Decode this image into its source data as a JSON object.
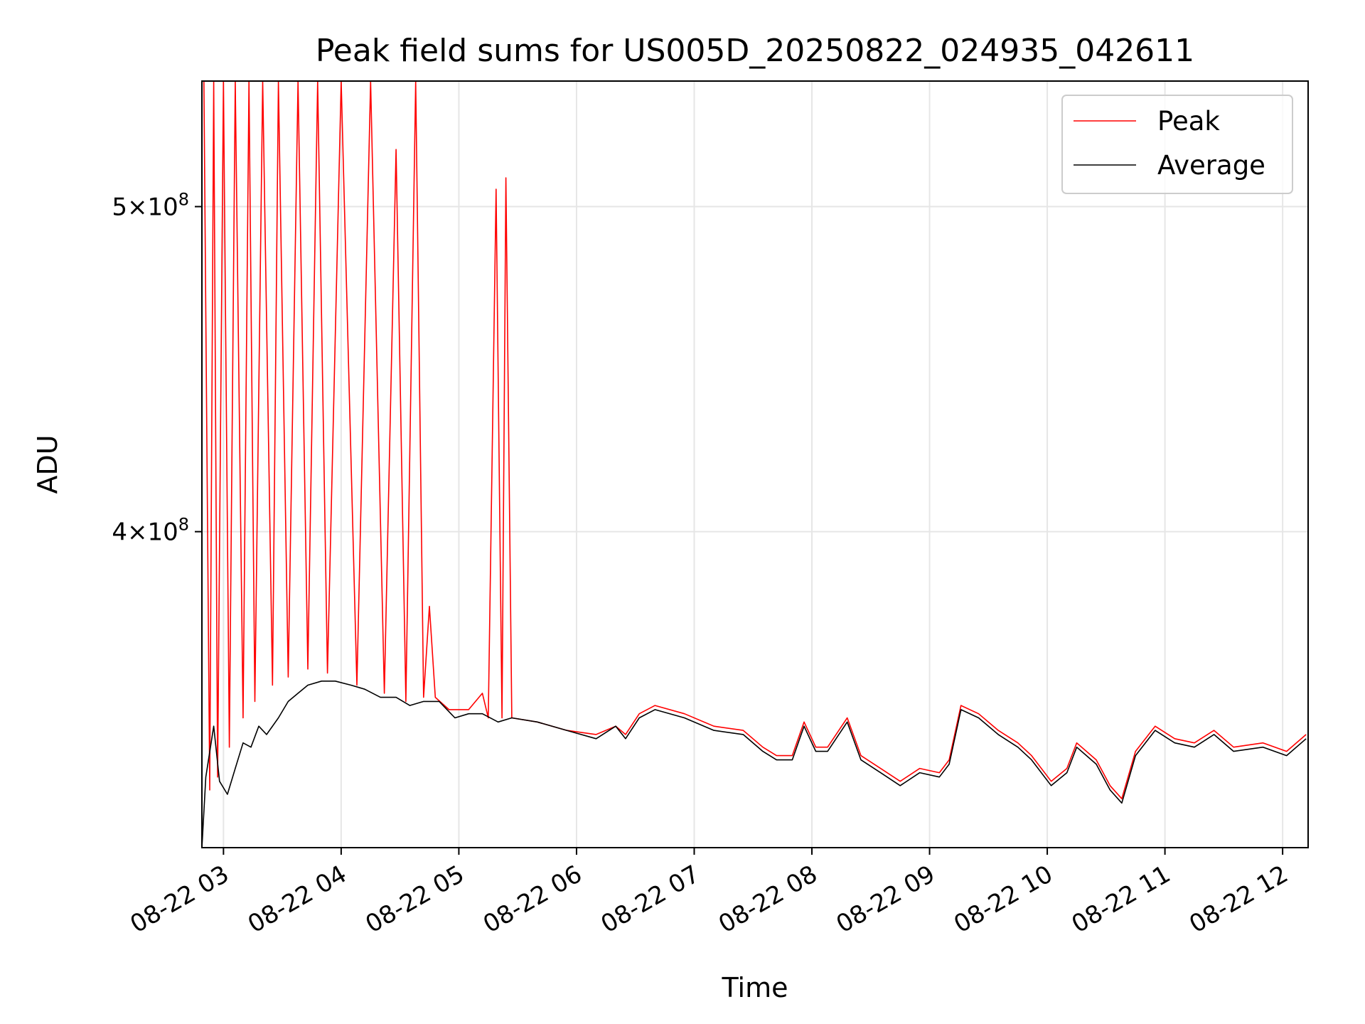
{
  "chart_data": {
    "type": "line",
    "title": "Peak field sums for US005D_20250822_024935_042611",
    "xlabel": "Time",
    "ylabel": "ADU",
    "y_scale": "log",
    "xlim": [
      "2025-08-22 02:49",
      "2025-08-22 12:13"
    ],
    "ylim": [
      322000000,
      545000000
    ],
    "x_ticks": [
      "08-22 03",
      "08-22 04",
      "08-22 05",
      "08-22 06",
      "08-22 07",
      "08-22 08",
      "08-22 09",
      "08-22 10",
      "08-22 11",
      "08-22 12"
    ],
    "y_ticks": [
      {
        "value": 400000000,
        "mantissa": "4",
        "base": "10",
        "exponent": "8"
      },
      {
        "value": 500000000,
        "mantissa": "5",
        "base": "10",
        "exponent": "8"
      }
    ],
    "grid": true,
    "legend_position": "top-right",
    "series": [
      {
        "name": "Peak",
        "color": "#ff0000",
        "points": [
          [
            "2025-08-22 02:50",
            545000000
          ],
          [
            "2025-08-22 02:53",
            335000000
          ],
          [
            "2025-08-22 02:55",
            545000000
          ],
          [
            "2025-08-22 02:57",
            338000000
          ],
          [
            "2025-08-22 03:00",
            545000000
          ],
          [
            "2025-08-22 03:03",
            345000000
          ],
          [
            "2025-08-22 03:06",
            545000000
          ],
          [
            "2025-08-22 03:10",
            352000000
          ],
          [
            "2025-08-22 03:13",
            545000000
          ],
          [
            "2025-08-22 03:16",
            356000000
          ],
          [
            "2025-08-22 03:20",
            545000000
          ],
          [
            "2025-08-22 03:25",
            360000000
          ],
          [
            "2025-08-22 03:28",
            545000000
          ],
          [
            "2025-08-22 03:33",
            362000000
          ],
          [
            "2025-08-22 03:38",
            545000000
          ],
          [
            "2025-08-22 03:43",
            364000000
          ],
          [
            "2025-08-22 03:48",
            545000000
          ],
          [
            "2025-08-22 03:53",
            363000000
          ],
          [
            "2025-08-22 04:00",
            545000000
          ],
          [
            "2025-08-22 04:08",
            360000000
          ],
          [
            "2025-08-22 04:15",
            545000000
          ],
          [
            "2025-08-22 04:22",
            358000000
          ],
          [
            "2025-08-22 04:28",
            520000000
          ],
          [
            "2025-08-22 04:33",
            356000000
          ],
          [
            "2025-08-22 04:38",
            545000000
          ],
          [
            "2025-08-22 04:42",
            357000000
          ],
          [
            "2025-08-22 04:45",
            380000000
          ],
          [
            "2025-08-22 04:48",
            357000000
          ],
          [
            "2025-08-22 04:55",
            354000000
          ],
          [
            "2025-08-22 05:05",
            354000000
          ],
          [
            "2025-08-22 05:12",
            358000000
          ],
          [
            "2025-08-22 05:15",
            352000000
          ],
          [
            "2025-08-22 05:19",
            506000000
          ],
          [
            "2025-08-22 05:22",
            352000000
          ],
          [
            "2025-08-22 05:24",
            510000000
          ],
          [
            "2025-08-22 05:27",
            352000000
          ],
          [
            "2025-08-22 05:40",
            351000000
          ],
          [
            "2025-08-22 05:55",
            349000000
          ],
          [
            "2025-08-22 06:10",
            348000000
          ],
          [
            "2025-08-22 06:20",
            350000000
          ],
          [
            "2025-08-22 06:25",
            348000000
          ],
          [
            "2025-08-22 06:32",
            353000000
          ],
          [
            "2025-08-22 06:40",
            355000000
          ],
          [
            "2025-08-22 06:55",
            353000000
          ],
          [
            "2025-08-22 07:10",
            350000000
          ],
          [
            "2025-08-22 07:25",
            349000000
          ],
          [
            "2025-08-22 07:35",
            345000000
          ],
          [
            "2025-08-22 07:42",
            343000000
          ],
          [
            "2025-08-22 07:50",
            343000000
          ],
          [
            "2025-08-22 07:56",
            351000000
          ],
          [
            "2025-08-22 08:02",
            345000000
          ],
          [
            "2025-08-22 08:08",
            345000000
          ],
          [
            "2025-08-22 08:18",
            352000000
          ],
          [
            "2025-08-22 08:25",
            343000000
          ],
          [
            "2025-08-22 08:35",
            340000000
          ],
          [
            "2025-08-22 08:45",
            337000000
          ],
          [
            "2025-08-22 08:55",
            340000000
          ],
          [
            "2025-08-22 09:05",
            339000000
          ],
          [
            "2025-08-22 09:10",
            342000000
          ],
          [
            "2025-08-22 09:16",
            355000000
          ],
          [
            "2025-08-22 09:25",
            353000000
          ],
          [
            "2025-08-22 09:35",
            349000000
          ],
          [
            "2025-08-22 09:45",
            346000000
          ],
          [
            "2025-08-22 09:52",
            343000000
          ],
          [
            "2025-08-22 10:02",
            337000000
          ],
          [
            "2025-08-22 10:10",
            340000000
          ],
          [
            "2025-08-22 10:15",
            346000000
          ],
          [
            "2025-08-22 10:25",
            342000000
          ],
          [
            "2025-08-22 10:32",
            336000000
          ],
          [
            "2025-08-22 10:38",
            333000000
          ],
          [
            "2025-08-22 10:45",
            344000000
          ],
          [
            "2025-08-22 10:55",
            350000000
          ],
          [
            "2025-08-22 11:05",
            347000000
          ],
          [
            "2025-08-22 11:15",
            346000000
          ],
          [
            "2025-08-22 11:25",
            349000000
          ],
          [
            "2025-08-22 11:35",
            345000000
          ],
          [
            "2025-08-22 11:50",
            346000000
          ],
          [
            "2025-08-22 12:02",
            344000000
          ],
          [
            "2025-08-22 12:12",
            348000000
          ]
        ]
      },
      {
        "name": "Average",
        "color": "#000000",
        "points": [
          [
            "2025-08-22 02:49",
            322000000
          ],
          [
            "2025-08-22 02:51",
            338000000
          ],
          [
            "2025-08-22 02:55",
            350000000
          ],
          [
            "2025-08-22 02:58",
            337000000
          ],
          [
            "2025-08-22 03:02",
            334000000
          ],
          [
            "2025-08-22 03:06",
            340000000
          ],
          [
            "2025-08-22 03:10",
            346000000
          ],
          [
            "2025-08-22 03:14",
            345000000
          ],
          [
            "2025-08-22 03:18",
            350000000
          ],
          [
            "2025-08-22 03:22",
            348000000
          ],
          [
            "2025-08-22 03:28",
            352000000
          ],
          [
            "2025-08-22 03:33",
            356000000
          ],
          [
            "2025-08-22 03:38",
            358000000
          ],
          [
            "2025-08-22 03:43",
            360000000
          ],
          [
            "2025-08-22 03:50",
            361000000
          ],
          [
            "2025-08-22 03:57",
            361000000
          ],
          [
            "2025-08-22 04:05",
            360000000
          ],
          [
            "2025-08-22 04:12",
            359000000
          ],
          [
            "2025-08-22 04:20",
            357000000
          ],
          [
            "2025-08-22 04:28",
            357000000
          ],
          [
            "2025-08-22 04:35",
            355000000
          ],
          [
            "2025-08-22 04:42",
            356000000
          ],
          [
            "2025-08-22 04:50",
            356000000
          ],
          [
            "2025-08-22 04:58",
            352000000
          ],
          [
            "2025-08-22 05:05",
            353000000
          ],
          [
            "2025-08-22 05:12",
            353000000
          ],
          [
            "2025-08-22 05:20",
            351000000
          ],
          [
            "2025-08-22 05:27",
            352000000
          ],
          [
            "2025-08-22 05:40",
            351000000
          ],
          [
            "2025-08-22 05:55",
            349000000
          ],
          [
            "2025-08-22 06:10",
            347000000
          ],
          [
            "2025-08-22 06:20",
            350000000
          ],
          [
            "2025-08-22 06:25",
            347000000
          ],
          [
            "2025-08-22 06:32",
            352000000
          ],
          [
            "2025-08-22 06:40",
            354000000
          ],
          [
            "2025-08-22 06:55",
            352000000
          ],
          [
            "2025-08-22 07:10",
            349000000
          ],
          [
            "2025-08-22 07:25",
            348000000
          ],
          [
            "2025-08-22 07:35",
            344000000
          ],
          [
            "2025-08-22 07:42",
            342000000
          ],
          [
            "2025-08-22 07:50",
            342000000
          ],
          [
            "2025-08-22 07:56",
            350000000
          ],
          [
            "2025-08-22 08:02",
            344000000
          ],
          [
            "2025-08-22 08:08",
            344000000
          ],
          [
            "2025-08-22 08:18",
            351000000
          ],
          [
            "2025-08-22 08:25",
            342000000
          ],
          [
            "2025-08-22 08:35",
            339000000
          ],
          [
            "2025-08-22 08:45",
            336000000
          ],
          [
            "2025-08-22 08:55",
            339000000
          ],
          [
            "2025-08-22 09:05",
            338000000
          ],
          [
            "2025-08-22 09:10",
            341000000
          ],
          [
            "2025-08-22 09:16",
            354000000
          ],
          [
            "2025-08-22 09:25",
            352000000
          ],
          [
            "2025-08-22 09:35",
            348000000
          ],
          [
            "2025-08-22 09:45",
            345000000
          ],
          [
            "2025-08-22 09:52",
            342000000
          ],
          [
            "2025-08-22 10:02",
            336000000
          ],
          [
            "2025-08-22 10:10",
            339000000
          ],
          [
            "2025-08-22 10:15",
            345000000
          ],
          [
            "2025-08-22 10:25",
            341000000
          ],
          [
            "2025-08-22 10:32",
            335000000
          ],
          [
            "2025-08-22 10:38",
            332000000
          ],
          [
            "2025-08-22 10:45",
            343000000
          ],
          [
            "2025-08-22 10:55",
            349000000
          ],
          [
            "2025-08-22 11:05",
            346000000
          ],
          [
            "2025-08-22 11:15",
            345000000
          ],
          [
            "2025-08-22 11:25",
            348000000
          ],
          [
            "2025-08-22 11:35",
            344000000
          ],
          [
            "2025-08-22 11:50",
            345000000
          ],
          [
            "2025-08-22 12:02",
            343000000
          ],
          [
            "2025-08-22 12:12",
            347000000
          ]
        ]
      }
    ]
  }
}
